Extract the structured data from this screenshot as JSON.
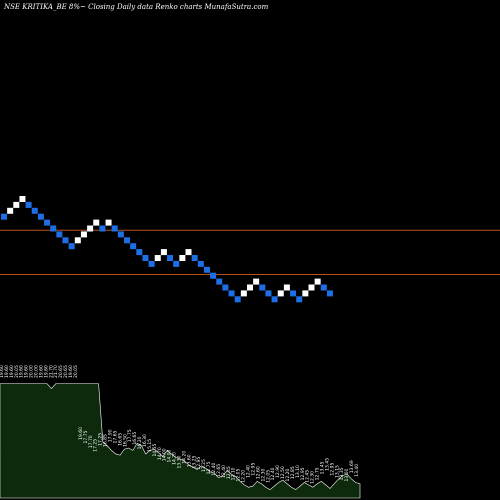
{
  "header": {
    "title": "NSE KRITIKA_BE 8%~   Closing Daily data  Renko  charts MunafaSutra.com"
  },
  "colors": {
    "background": "#000000",
    "up_brick": "#ffffff",
    "down_brick": "#1e6fe6",
    "reference_line": "#b5521d",
    "volume_fill": "#0d2a0d",
    "volume_stroke": "#ffffff"
  },
  "chart_data": [
    {
      "type": "renko",
      "bricks": [
        {
          "dir": "down",
          "level": 3
        },
        {
          "dir": "up",
          "level": 2
        },
        {
          "dir": "up",
          "level": 1
        },
        {
          "dir": "up",
          "level": 0
        },
        {
          "dir": "down",
          "level": 1
        },
        {
          "dir": "down",
          "level": 2
        },
        {
          "dir": "down",
          "level": 3
        },
        {
          "dir": "down",
          "level": 4
        },
        {
          "dir": "down",
          "level": 5
        },
        {
          "dir": "down",
          "level": 6
        },
        {
          "dir": "down",
          "level": 7
        },
        {
          "dir": "down",
          "level": 8
        },
        {
          "dir": "up",
          "level": 7
        },
        {
          "dir": "up",
          "level": 6
        },
        {
          "dir": "up",
          "level": 5
        },
        {
          "dir": "up",
          "level": 4
        },
        {
          "dir": "down",
          "level": 5
        },
        {
          "dir": "up",
          "level": 4
        },
        {
          "dir": "down",
          "level": 5
        },
        {
          "dir": "down",
          "level": 6
        },
        {
          "dir": "down",
          "level": 7
        },
        {
          "dir": "down",
          "level": 8
        },
        {
          "dir": "down",
          "level": 9
        },
        {
          "dir": "down",
          "level": 10
        },
        {
          "dir": "down",
          "level": 11
        },
        {
          "dir": "up",
          "level": 10
        },
        {
          "dir": "up",
          "level": 9
        },
        {
          "dir": "down",
          "level": 10
        },
        {
          "dir": "down",
          "level": 11
        },
        {
          "dir": "up",
          "level": 10
        },
        {
          "dir": "up",
          "level": 9
        },
        {
          "dir": "down",
          "level": 10
        },
        {
          "dir": "down",
          "level": 11
        },
        {
          "dir": "down",
          "level": 12
        },
        {
          "dir": "down",
          "level": 13
        },
        {
          "dir": "down",
          "level": 14
        },
        {
          "dir": "down",
          "level": 15
        },
        {
          "dir": "down",
          "level": 16
        },
        {
          "dir": "down",
          "level": 17
        },
        {
          "dir": "up",
          "level": 16
        },
        {
          "dir": "up",
          "level": 15
        },
        {
          "dir": "up",
          "level": 14
        },
        {
          "dir": "down",
          "level": 15
        },
        {
          "dir": "down",
          "level": 16
        },
        {
          "dir": "down",
          "level": 17
        },
        {
          "dir": "up",
          "level": 16
        },
        {
          "dir": "up",
          "level": 15
        },
        {
          "dir": "down",
          "level": 16
        },
        {
          "dir": "down",
          "level": 17
        },
        {
          "dir": "up",
          "level": 16
        },
        {
          "dir": "up",
          "level": 15
        },
        {
          "dir": "up",
          "level": 14
        },
        {
          "dir": "down",
          "level": 15
        },
        {
          "dir": "down",
          "level": 16
        }
      ],
      "reference_lines": [
        {
          "level": 5.8
        },
        {
          "level": 13.3
        }
      ]
    },
    {
      "type": "area",
      "volume_levels": [
        0.96,
        0.96,
        0.96,
        0.96,
        0.96,
        0.96,
        0.96,
        0.96,
        0.96,
        0.96,
        0.96,
        0.96,
        0.92,
        0.96,
        0.96,
        0.96,
        0.96,
        0.96,
        0.96,
        0.96,
        0.96,
        0.96,
        0.96,
        0.96,
        0.47,
        0.44,
        0.4,
        0.37,
        0.36,
        0.41,
        0.42,
        0.4,
        0.46,
        0.44,
        0.37,
        0.4,
        0.41,
        0.38,
        0.35,
        0.4,
        0.37,
        0.34,
        0.33,
        0.31,
        0.28,
        0.26,
        0.24,
        0.27,
        0.25,
        0.22,
        0.21,
        0.17,
        0.19,
        0.23,
        0.2,
        0.18,
        0.14,
        0.11,
        0.09,
        0.1,
        0.14,
        0.12,
        0.09,
        0.07,
        0.1,
        0.13,
        0.15,
        0.12,
        0.09,
        0.07,
        0.1,
        0.13,
        0.11,
        0.09,
        0.12,
        0.14,
        0.11,
        0.08,
        0.12,
        0.16,
        0.19,
        0.2,
        0.16,
        0.13,
        0.12
      ],
      "labels": [
        {
          "text": "19.60",
          "level": 1.0
        },
        {
          "text": "19.60",
          "level": 1.0
        },
        {
          "text": "19.60",
          "level": 1.0
        },
        {
          "text": "20.05",
          "level": 1.0
        },
        {
          "text": "19.60",
          "level": 1.0
        },
        {
          "text": "19.60",
          "level": 1.0
        },
        {
          "text": "20.00",
          "level": 1.0
        },
        {
          "text": "20.00",
          "level": 1.0
        },
        {
          "text": "19.60",
          "level": 1.0
        },
        {
          "text": "19.60",
          "level": 1.0
        },
        {
          "text": "21.70",
          "level": 1.0
        },
        {
          "text": "21.70",
          "level": 1.0
        },
        {
          "text": "20.65",
          "level": 1.0
        },
        {
          "text": "20.65",
          "level": 1.0
        },
        {
          "text": "19.60",
          "level": 1.0
        },
        {
          "text": "20.05",
          "level": 1.0
        },
        {
          "text": "19.60",
          "level": 0.48
        },
        {
          "text": "17.75",
          "level": 0.45
        },
        {
          "text": "17.70",
          "level": 0.41
        },
        {
          "text": "17.25",
          "level": 0.38
        },
        {
          "text": "17.25",
          "level": 0.43
        },
        {
          "text": "16.85",
          "level": 0.42
        },
        {
          "text": "17.90",
          "level": 0.46
        },
        {
          "text": "17.65",
          "level": 0.45
        },
        {
          "text": "16.65",
          "level": 0.43
        },
        {
          "text": "16.50",
          "level": 0.42
        },
        {
          "text": "17.75",
          "level": 0.46
        },
        {
          "text": "16.65",
          "level": 0.44
        },
        {
          "text": "16.20",
          "level": 0.4
        },
        {
          "text": "16.30",
          "level": 0.42
        },
        {
          "text": "15.15",
          "level": 0.38
        },
        {
          "text": "14.55",
          "level": 0.34
        },
        {
          "text": "14.70",
          "level": 0.31
        },
        {
          "text": "14.00",
          "level": 0.3
        },
        {
          "text": "14.00",
          "level": 0.29
        },
        {
          "text": "14.20",
          "level": 0.27
        },
        {
          "text": "13.30",
          "level": 0.24
        },
        {
          "text": "14.20",
          "level": 0.28
        },
        {
          "text": "13.60",
          "level": 0.25
        },
        {
          "text": "13.25",
          "level": 0.24
        },
        {
          "text": "12.95",
          "level": 0.23
        },
        {
          "text": "13.25",
          "level": 0.21
        },
        {
          "text": "12.75",
          "level": 0.19
        },
        {
          "text": "12.40",
          "level": 0.18
        },
        {
          "text": "12.65",
          "level": 0.17
        },
        {
          "text": "12.40",
          "level": 0.16
        },
        {
          "text": "12.45",
          "level": 0.15
        },
        {
          "text": "12.10",
          "level": 0.14
        },
        {
          "text": "12.05",
          "level": 0.13
        },
        {
          "text": "12.20",
          "level": 0.12
        },
        {
          "text": "12.40",
          "level": 0.16
        },
        {
          "text": "12.95",
          "level": 0.18
        },
        {
          "text": "12.60",
          "level": 0.15
        },
        {
          "text": "12.30",
          "level": 0.13
        },
        {
          "text": "12.05",
          "level": 0.12
        },
        {
          "text": "12.40",
          "level": 0.14
        },
        {
          "text": "12.90",
          "level": 0.16
        },
        {
          "text": "12.50",
          "level": 0.15
        },
        {
          "text": "12.20",
          "level": 0.13
        },
        {
          "text": "12.85",
          "level": 0.15
        },
        {
          "text": "13.10",
          "level": 0.16
        },
        {
          "text": "12.95",
          "level": 0.14
        },
        {
          "text": "12.45",
          "level": 0.12
        },
        {
          "text": "12.30",
          "level": 0.11
        },
        {
          "text": "12.75",
          "level": 0.14
        },
        {
          "text": "13.45",
          "level": 0.19
        },
        {
          "text": "13.45",
          "level": 0.22
        },
        {
          "text": "12.95",
          "level": 0.18
        },
        {
          "text": "13.15",
          "level": 0.16
        },
        {
          "text": "13.35",
          "level": 0.14
        },
        {
          "text": "13.00",
          "level": 0.13
        },
        {
          "text": "13.69",
          "level": 0.2
        },
        {
          "text": "13.40",
          "level": 0.17
        }
      ]
    }
  ]
}
